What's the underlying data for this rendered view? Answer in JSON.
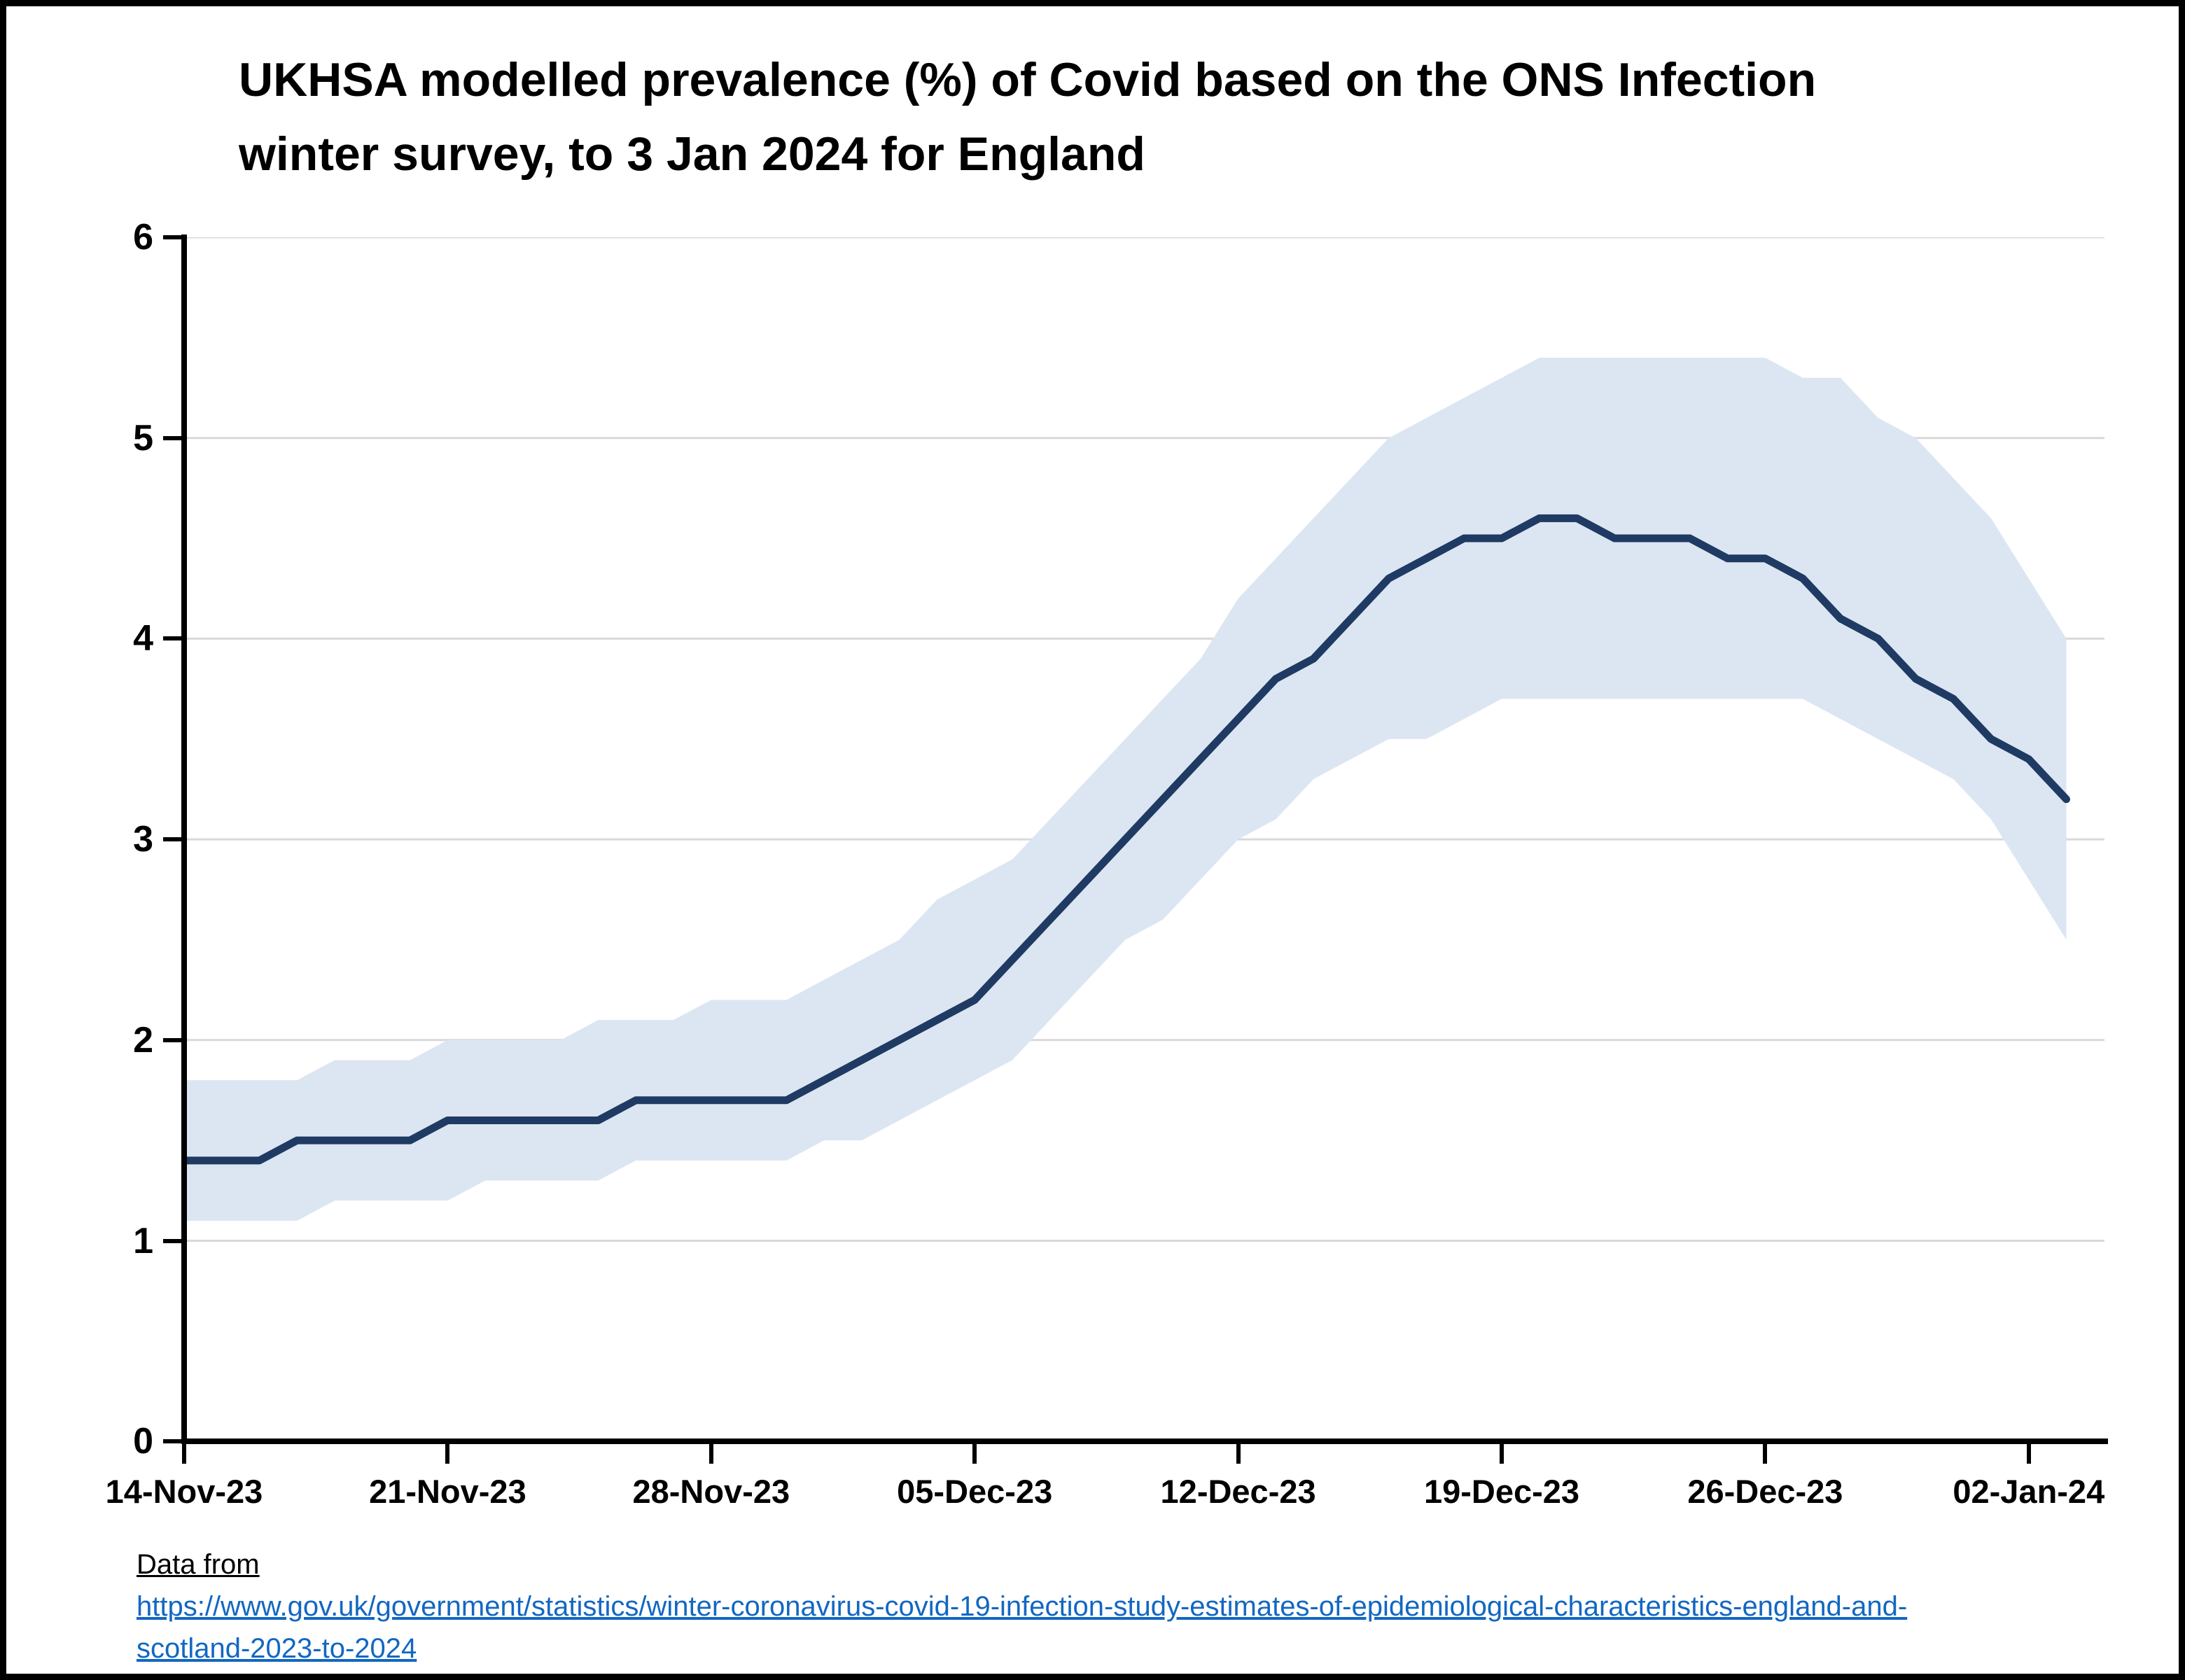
{
  "title_line1": "UKHSA modelled prevalence (%) of Covid based on the ONS Infection",
  "title_line2": "winter survey, to 3 Jan 2024 for England",
  "footer": {
    "source_label": "Data from",
    "link_line1": "https://www.gov.uk/government/statistics/winter-coronavirus-covid-19-infection-study-estimates-of-epidemiological-characteristics-england-and-",
    "link_line2": "scotland-2023-to-2024"
  },
  "colors": {
    "line": "#1f3a63",
    "band": "#dce6f2",
    "gridline": "#d9d9d9",
    "axis": "#000000",
    "link": "#1267c2"
  },
  "chart_data": {
    "type": "line",
    "title": "UKHSA modelled prevalence (%) of Covid based on the ONS Infection winter survey, to 3 Jan 2024 for England",
    "xlabel": "",
    "ylabel": "",
    "ylim": [
      0,
      6
    ],
    "yticks": [
      0,
      1,
      2,
      3,
      4,
      5,
      6
    ],
    "grid": true,
    "legend": "none",
    "x_tick_labels": [
      "14-Nov-23",
      "21-Nov-23",
      "28-Nov-23",
      "05-Dec-23",
      "12-Dec-23",
      "19-Dec-23",
      "26-Dec-23",
      "02-Jan-24"
    ],
    "x": [
      "2023-11-14",
      "2023-11-15",
      "2023-11-16",
      "2023-11-17",
      "2023-11-18",
      "2023-11-19",
      "2023-11-20",
      "2023-11-21",
      "2023-11-22",
      "2023-11-23",
      "2023-11-24",
      "2023-11-25",
      "2023-11-26",
      "2023-11-27",
      "2023-11-28",
      "2023-11-29",
      "2023-11-30",
      "2023-12-01",
      "2023-12-02",
      "2023-12-03",
      "2023-12-04",
      "2023-12-05",
      "2023-12-06",
      "2023-12-07",
      "2023-12-08",
      "2023-12-09",
      "2023-12-10",
      "2023-12-11",
      "2023-12-12",
      "2023-12-13",
      "2023-12-14",
      "2023-12-15",
      "2023-12-16",
      "2023-12-17",
      "2023-12-18",
      "2023-12-19",
      "2023-12-20",
      "2023-12-21",
      "2023-12-22",
      "2023-12-23",
      "2023-12-24",
      "2023-12-25",
      "2023-12-26",
      "2023-12-27",
      "2023-12-28",
      "2023-12-29",
      "2023-12-30",
      "2023-12-31",
      "2024-01-01",
      "2024-01-02",
      "2024-01-03"
    ],
    "series": [
      {
        "name": "Modelled prevalence (%)",
        "values": [
          1.4,
          1.4,
          1.4,
          1.5,
          1.5,
          1.5,
          1.5,
          1.6,
          1.6,
          1.6,
          1.6,
          1.6,
          1.7,
          1.7,
          1.7,
          1.7,
          1.7,
          1.8,
          1.9,
          2.0,
          2.1,
          2.2,
          2.4,
          2.6,
          2.8,
          3.0,
          3.2,
          3.4,
          3.6,
          3.8,
          3.9,
          4.1,
          4.3,
          4.4,
          4.5,
          4.5,
          4.6,
          4.6,
          4.5,
          4.5,
          4.5,
          4.4,
          4.4,
          4.3,
          4.1,
          4.0,
          3.8,
          3.7,
          3.5,
          3.4,
          3.2
        ]
      },
      {
        "name": "Upper credible interval",
        "values": [
          1.8,
          1.8,
          1.8,
          1.8,
          1.9,
          1.9,
          1.9,
          2.0,
          2.0,
          2.0,
          2.0,
          2.1,
          2.1,
          2.1,
          2.2,
          2.2,
          2.2,
          2.3,
          2.4,
          2.5,
          2.7,
          2.8,
          2.9,
          3.1,
          3.3,
          3.5,
          3.7,
          3.9,
          4.2,
          4.4,
          4.6,
          4.8,
          5.0,
          5.1,
          5.2,
          5.3,
          5.4,
          5.4,
          5.4,
          5.4,
          5.4,
          5.4,
          5.4,
          5.3,
          5.3,
          5.1,
          5.0,
          4.8,
          4.6,
          4.3,
          4.0
        ]
      },
      {
        "name": "Lower credible interval",
        "values": [
          1.1,
          1.1,
          1.1,
          1.1,
          1.2,
          1.2,
          1.2,
          1.2,
          1.3,
          1.3,
          1.3,
          1.3,
          1.4,
          1.4,
          1.4,
          1.4,
          1.4,
          1.5,
          1.5,
          1.6,
          1.7,
          1.8,
          1.9,
          2.1,
          2.3,
          2.5,
          2.6,
          2.8,
          3.0,
          3.1,
          3.3,
          3.4,
          3.5,
          3.5,
          3.6,
          3.7,
          3.7,
          3.7,
          3.7,
          3.7,
          3.7,
          3.7,
          3.7,
          3.7,
          3.6,
          3.5,
          3.4,
          3.3,
          3.1,
          2.8,
          2.5
        ]
      }
    ]
  }
}
